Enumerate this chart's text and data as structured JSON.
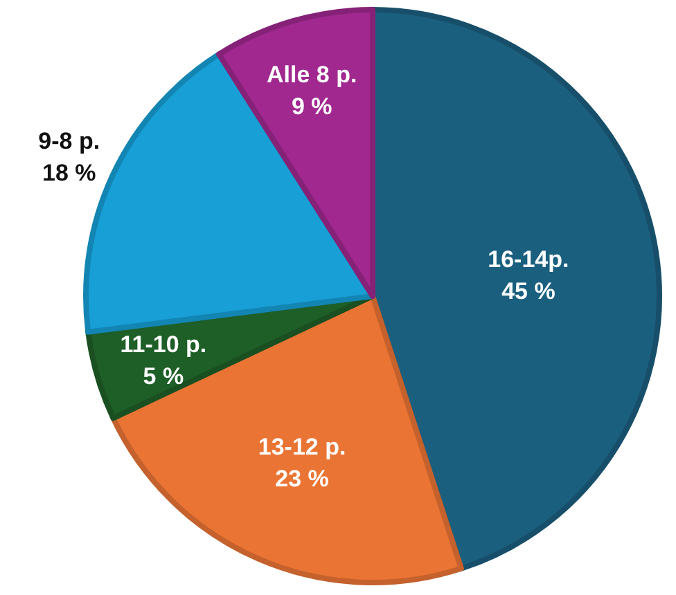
{
  "chart_data": {
    "type": "pie",
    "categories": [
      "16-14p.",
      "13-12 p.",
      "11-10 p.",
      "9-8 p.",
      "Alle 8 p."
    ],
    "values": [
      45,
      23,
      5,
      18,
      9
    ],
    "value_labels": [
      "45 %",
      "23 %",
      "5 %",
      "18 %",
      "9 %"
    ],
    "colors": [
      "#1b5f7f",
      "#ea7434",
      "#1e5e27",
      "#179fd6",
      "#a0288f"
    ]
  }
}
